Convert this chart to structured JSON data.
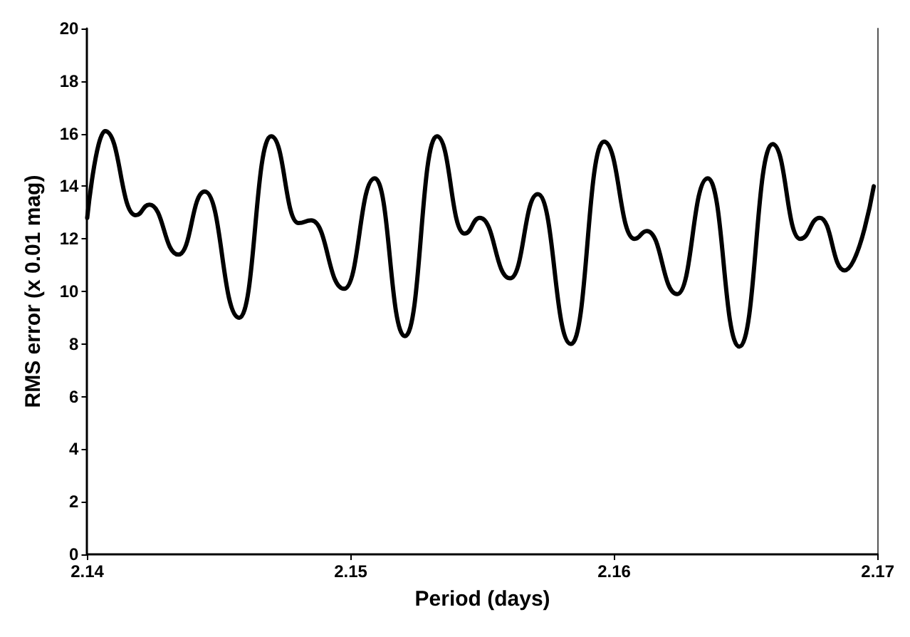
{
  "chart_data": {
    "type": "line",
    "xlabel": "Period (days)",
    "ylabel": "RMS error (x 0.01 mag)",
    "xlim": [
      2.14,
      2.17
    ],
    "xticks": [
      2.14,
      2.15,
      2.16,
      2.17
    ],
    "ylim": [
      0,
      20
    ],
    "yticks": [
      0,
      2,
      4,
      6,
      8,
      10,
      12,
      14,
      16,
      18,
      20
    ],
    "grid": false,
    "marker": "none",
    "line_style": "solid",
    "x": [
      2.14,
      2.14068,
      2.14184,
      2.14236,
      2.14346,
      2.14446,
      2.14577,
      2.14698,
      2.14802,
      2.1485,
      2.14975,
      2.15091,
      2.15206,
      2.15327,
      2.15432,
      2.1549,
      2.15605,
      2.1571,
      2.15836,
      2.15961,
      2.16077,
      2.16124,
      2.16239,
      2.16355,
      2.16475,
      2.16601,
      2.16706,
      2.1678,
      2.16874,
      2.16985
    ],
    "series": [
      {
        "color": "#000000",
        "values": [
          12.8,
          16.1,
          12.9,
          13.3,
          11.4,
          13.8,
          9.0,
          15.9,
          12.6,
          12.7,
          10.1,
          14.3,
          8.3,
          15.9,
          12.2,
          12.8,
          10.5,
          13.7,
          8.0,
          15.7,
          12.0,
          12.3,
          9.9,
          14.3,
          7.9,
          15.6,
          12.0,
          12.8,
          10.8,
          14.0
        ]
      }
    ]
  }
}
